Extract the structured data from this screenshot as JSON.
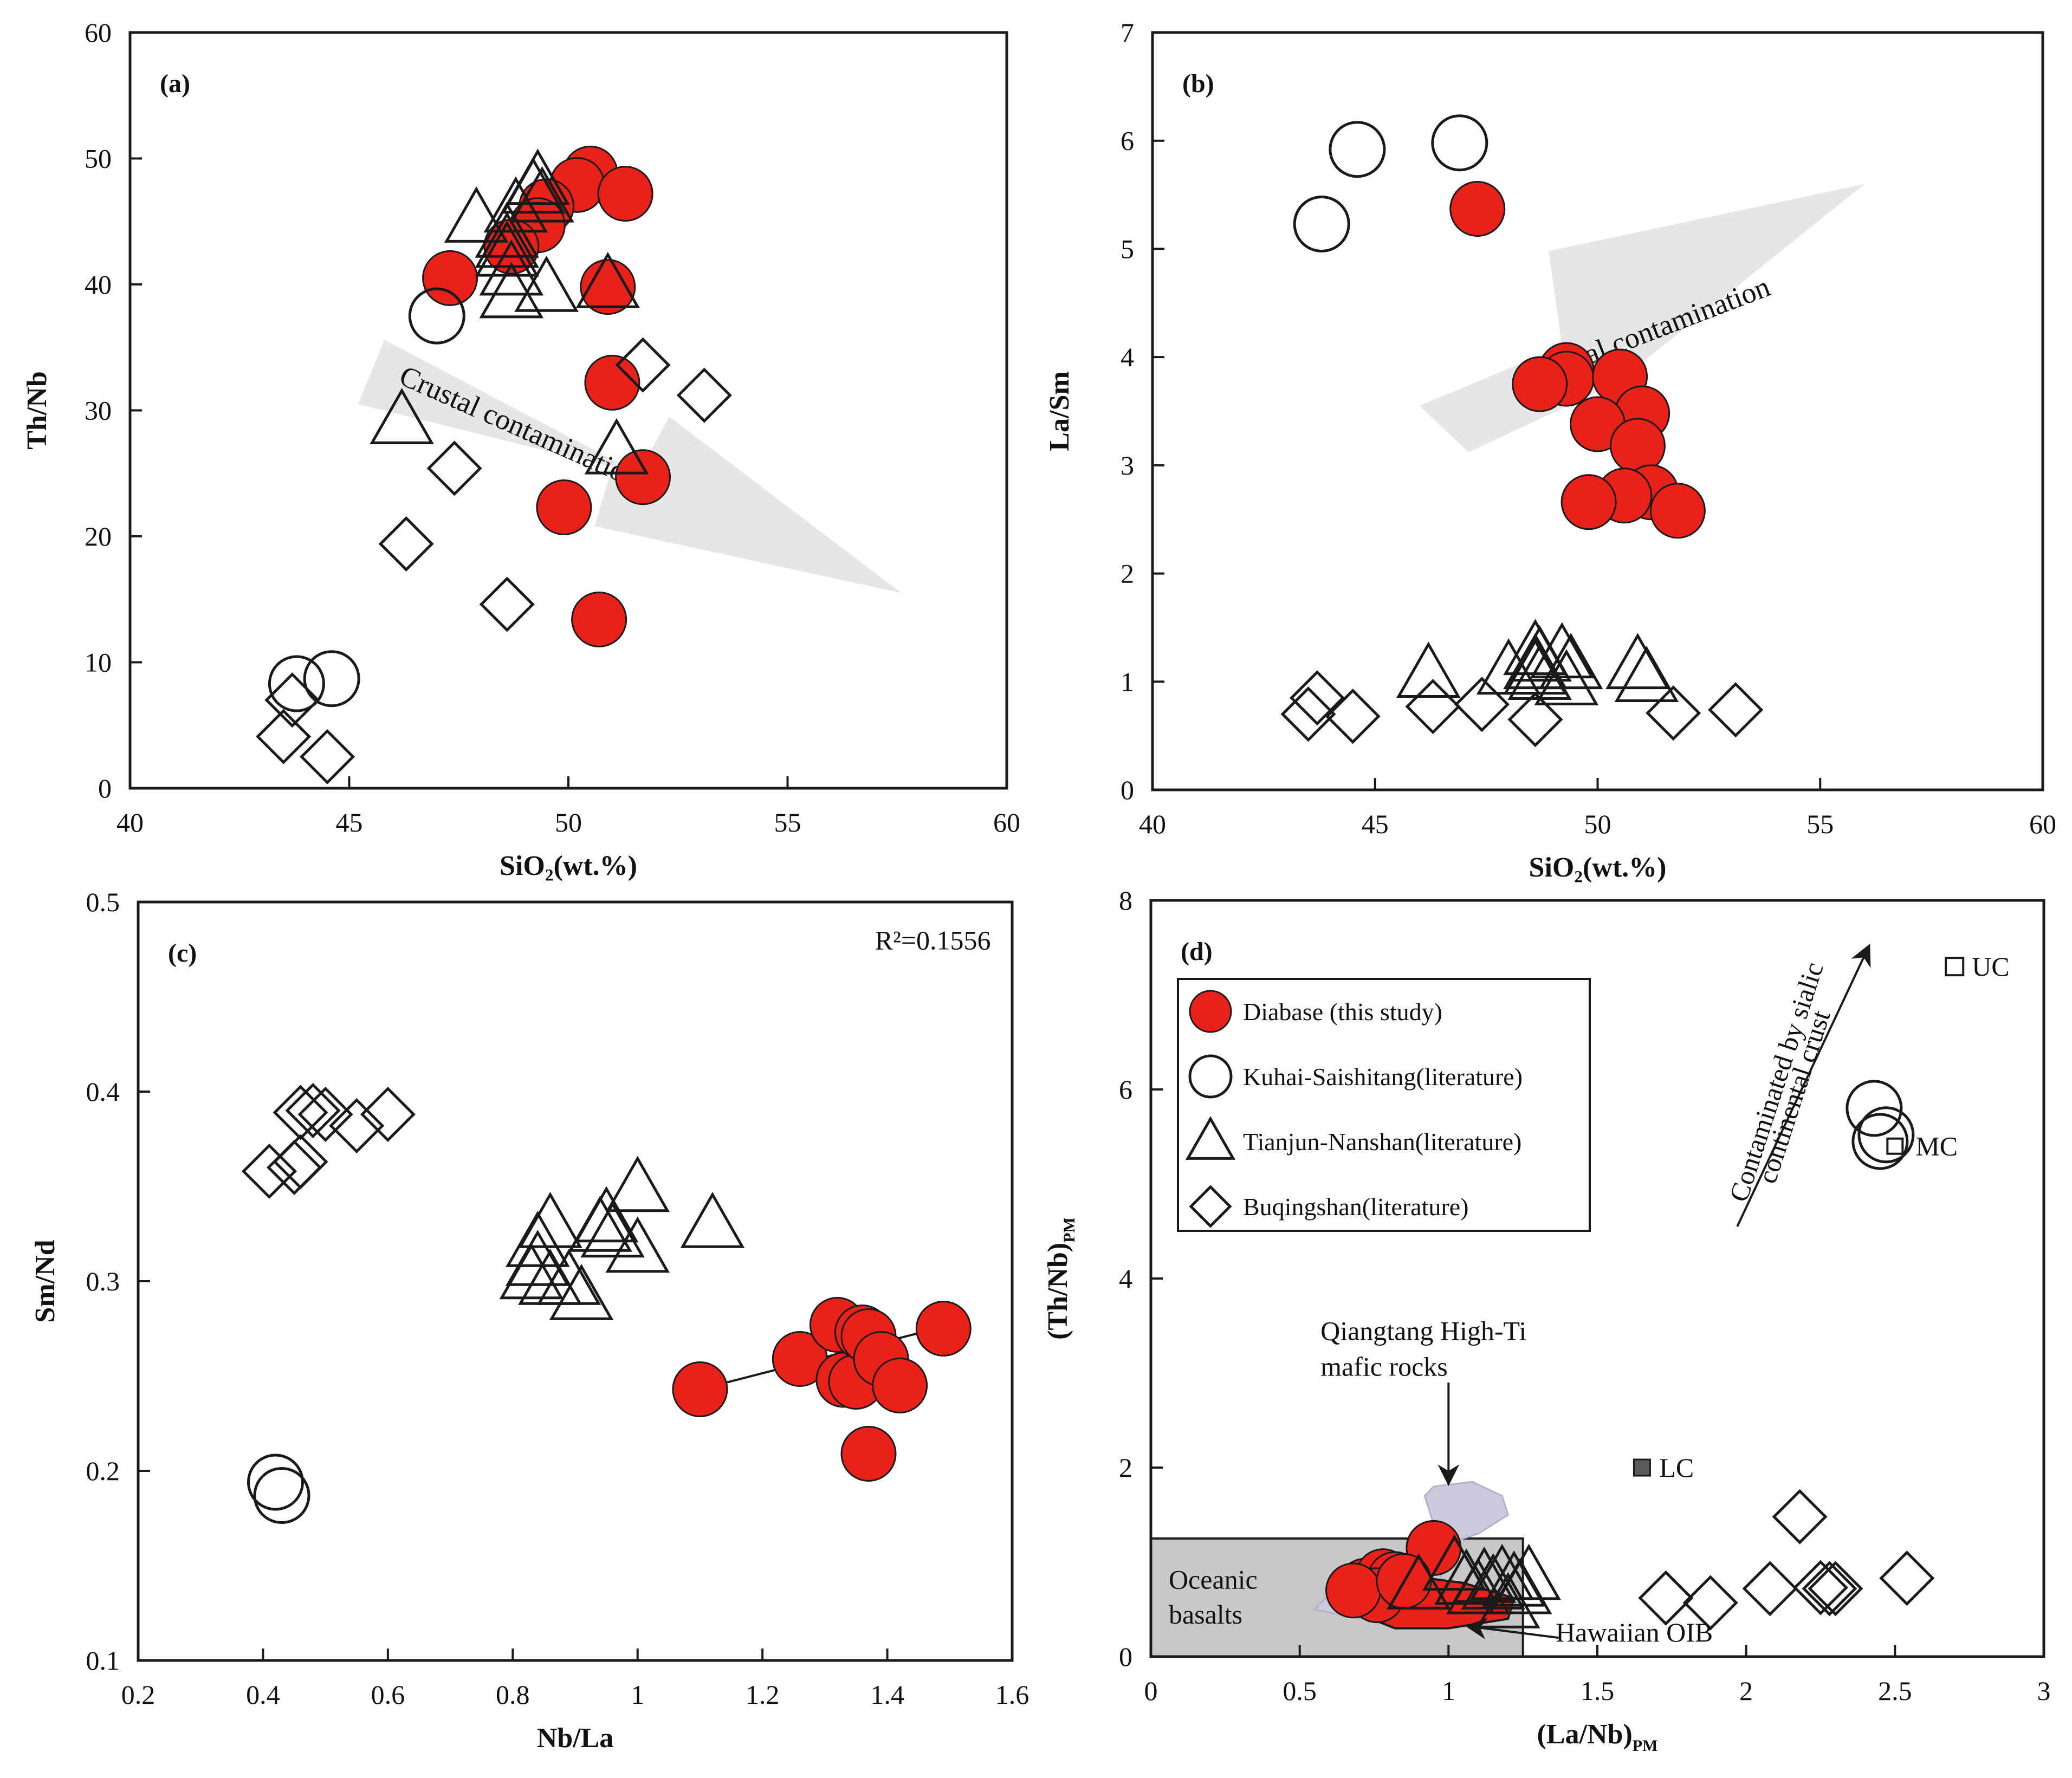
{
  "figure": {
    "colors": {
      "red": "#e8221b",
      "stroke": "#1a1a1a",
      "arrow": "#e6e6e6",
      "box": "#c8c8c8",
      "lc": "#5a5a5a",
      "purple": "#cdc9dc"
    }
  },
  "chart_data": [
    {
      "panel": "a",
      "type": "scatter",
      "label": "(a)",
      "xlabel": "SiO₂(wt.%)",
      "ylabel": "Th/Nb",
      "xlim": [
        40,
        60
      ],
      "ylim": [
        0,
        60
      ],
      "xticks": [
        "40",
        "45",
        "50",
        "55",
        "60"
      ],
      "yticks": [
        "0",
        "10",
        "20",
        "30",
        "40",
        "50",
        "60"
      ],
      "arrow_label": "Crustal contamination",
      "series": [
        {
          "name": "Diabase (this study)",
          "marker": "circle-red",
          "points": [
            [
              50.5,
              48.8
            ],
            [
              50.2,
              47.9
            ],
            [
              51.3,
              47.2
            ],
            [
              49.5,
              46.2
            ],
            [
              49.3,
              44.7
            ],
            [
              48.7,
              43.0
            ],
            [
              47.3,
              40.5
            ],
            [
              50.9,
              39.8
            ],
            [
              51.0,
              32.2
            ],
            [
              51.7,
              24.7
            ],
            [
              49.9,
              22.3
            ],
            [
              50.7,
              13.4
            ]
          ]
        },
        {
          "name": "Kuhai-Saishitang(literature)",
          "marker": "circle-open",
          "points": [
            [
              47.0,
              37.5
            ],
            [
              43.8,
              8.3
            ],
            [
              44.6,
              8.7
            ]
          ]
        },
        {
          "name": "Tianjun-Nanshan(literature)",
          "marker": "triangle",
          "points": [
            [
              49.2,
              47.5
            ],
            [
              49.3,
              48.2
            ],
            [
              49.4,
              46.8
            ],
            [
              48.8,
              46.0
            ],
            [
              47.9,
              45.2
            ],
            [
              48.6,
              44.0
            ],
            [
              48.6,
              43.2
            ],
            [
              48.6,
              42.5
            ],
            [
              48.7,
              41.0
            ],
            [
              48.7,
              39.2
            ],
            [
              49.5,
              39.7
            ],
            [
              50.9,
              40.0
            ],
            [
              51.1,
              26.8
            ],
            [
              46.2,
              29.2
            ]
          ]
        },
        {
          "name": "Buqingshan(literature)",
          "marker": "diamond",
          "points": [
            [
              51.7,
              33.6
            ],
            [
              53.1,
              31.2
            ],
            [
              47.4,
              25.4
            ],
            [
              46.3,
              19.4
            ],
            [
              48.6,
              14.6
            ],
            [
              43.7,
              7.0
            ],
            [
              43.5,
              4.1
            ],
            [
              44.5,
              2.5
            ]
          ]
        }
      ]
    },
    {
      "panel": "b",
      "type": "scatter",
      "label": "(b)",
      "xlabel": "SiO₂(wt.%)",
      "ylabel": "La/Sm",
      "xlim": [
        40,
        60
      ],
      "ylim": [
        0,
        7
      ],
      "xticks": [
        "40",
        "45",
        "50",
        "55",
        "60"
      ],
      "yticks": [
        "0",
        "1",
        "2",
        "3",
        "4",
        "5",
        "6",
        "7"
      ],
      "arrow_label": "Crustal contamination",
      "series": [
        {
          "name": "Diabase (this study)",
          "marker": "circle-red",
          "points": [
            [
              47.3,
              5.37
            ],
            [
              49.3,
              3.88
            ],
            [
              49.3,
              3.8
            ],
            [
              48.7,
              3.75
            ],
            [
              50.5,
              3.82
            ],
            [
              51.0,
              3.48
            ],
            [
              50.0,
              3.38
            ],
            [
              50.9,
              3.18
            ],
            [
              51.2,
              2.75
            ],
            [
              50.6,
              2.72
            ],
            [
              49.8,
              2.66
            ],
            [
              51.8,
              2.58
            ]
          ]
        },
        {
          "name": "Kuhai-Saishitang(literature)",
          "marker": "circle-open",
          "points": [
            [
              44.6,
              5.92
            ],
            [
              46.9,
              5.98
            ],
            [
              43.8,
              5.23
            ]
          ]
        },
        {
          "name": "Tianjun-Nanshan(literature)",
          "marker": "triangle",
          "points": [
            [
              48.6,
              1.28
            ],
            [
              48.7,
              1.22
            ],
            [
              48.6,
              1.15
            ],
            [
              48.6,
              1.1
            ],
            [
              48.7,
              1.05
            ],
            [
              49.2,
              1.25
            ],
            [
              49.4,
              1.15
            ],
            [
              49.3,
              1.0
            ],
            [
              48.0,
              1.1
            ],
            [
              46.2,
              1.07
            ],
            [
              50.9,
              1.15
            ],
            [
              51.1,
              1.03
            ]
          ]
        },
        {
          "name": "Buqingshan(literature)",
          "marker": "diamond",
          "points": [
            [
              43.7,
              0.85
            ],
            [
              43.5,
              0.7
            ],
            [
              44.5,
              0.68
            ],
            [
              46.3,
              0.77
            ],
            [
              47.4,
              0.79
            ],
            [
              48.6,
              0.65
            ],
            [
              51.7,
              0.71
            ],
            [
              53.1,
              0.74
            ]
          ]
        }
      ]
    },
    {
      "panel": "c",
      "type": "scatter",
      "label": "(c)",
      "xlabel": "Nb/La",
      "ylabel": "Sm/Nd",
      "xlim": [
        0.2,
        1.6
      ],
      "ylim": [
        0.1,
        0.5
      ],
      "xticks": [
        "0.2",
        "0.4",
        "0.6",
        "0.8",
        "1",
        "1.2",
        "1.4",
        "1.6"
      ],
      "yticks": [
        "0.1",
        "0.2",
        "0.3",
        "0.4",
        "0.5"
      ],
      "r2_label": "R²=0.1556",
      "trendline": [
        [
          1.1,
          0.243
        ],
        [
          1.49,
          0.276
        ]
      ],
      "series": [
        {
          "name": "Diabase (this study)",
          "marker": "circle-red",
          "points": [
            [
              1.1,
              0.243
            ],
            [
              1.26,
              0.259
            ],
            [
              1.32,
              0.277
            ],
            [
              1.33,
              0.248
            ],
            [
              1.35,
              0.247
            ],
            [
              1.36,
              0.273
            ],
            [
              1.37,
              0.271
            ],
            [
              1.39,
              0.259
            ],
            [
              1.42,
              0.245
            ],
            [
              1.49,
              0.275
            ],
            [
              1.37,
              0.209
            ]
          ]
        },
        {
          "name": "Kuhai-Saishitang(literature)",
          "marker": "circle-open",
          "points": [
            [
              0.42,
              0.194
            ],
            [
              0.43,
              0.187
            ]
          ]
        },
        {
          "name": "Tianjun-Nanshan(literature)",
          "marker": "triangle",
          "points": [
            [
              0.84,
              0.32
            ],
            [
              0.86,
              0.33
            ],
            [
              0.84,
              0.31
            ],
            [
              0.83,
              0.303
            ],
            [
              0.86,
              0.3
            ],
            [
              0.89,
              0.3
            ],
            [
              0.91,
              0.292
            ],
            [
              0.94,
              0.328
            ],
            [
              0.95,
              0.333
            ],
            [
              0.96,
              0.325
            ],
            [
              1.0,
              0.349
            ],
            [
              1.0,
              0.317
            ],
            [
              1.12,
              0.33
            ]
          ]
        },
        {
          "name": "Buqingshan(literature)",
          "marker": "diamond",
          "points": [
            [
              0.41,
              0.358
            ],
            [
              0.45,
              0.36
            ],
            [
              0.46,
              0.363
            ],
            [
              0.46,
              0.389
            ],
            [
              0.48,
              0.39
            ],
            [
              0.5,
              0.388
            ],
            [
              0.55,
              0.382
            ],
            [
              0.6,
              0.388
            ]
          ]
        }
      ]
    },
    {
      "panel": "d",
      "type": "scatter",
      "label": "(d)",
      "xlabel": "(La/Nb)",
      "xlabel_sub": "PM",
      "ylabel": "(Th/Nb)",
      "ylabel_sub": "PM",
      "xlim": [
        0,
        3
      ],
      "ylim": [
        0,
        8
      ],
      "xticks": [
        "0",
        "0.5",
        "1",
        "1.5",
        "2",
        "2.5",
        "3"
      ],
      "yticks": [
        "0",
        "2",
        "4",
        "6",
        "8"
      ],
      "annotations": {
        "oceanic_line1": "Oceanic",
        "oceanic_line2": "basalts",
        "qiangtang_line1": "Qiangtang High-Ti",
        "qiangtang_line2": "mafic rocks",
        "hawaiian": "Hawaiian OIB",
        "contam_line1": "Contaminated by sialic",
        "contam_line2": "continental crust",
        "uc": "UC",
        "mc": "MC",
        "lc": "LC"
      },
      "reference_points": {
        "UC": [
          2.7,
          7.3
        ],
        "MC": [
          2.5,
          5.4
        ],
        "LC": [
          1.65,
          2.0
        ]
      },
      "legend": [
        {
          "marker": "circle-red",
          "label": "Diabase (this study)"
        },
        {
          "marker": "circle-open",
          "label": "Kuhai-Saishitang(literature)"
        },
        {
          "marker": "triangle",
          "label": "Tianjun-Nanshan(literature)"
        },
        {
          "marker": "diamond",
          "label": "Buqingshan(literature)"
        }
      ],
      "series": [
        {
          "name": "Diabase (this study)",
          "marker": "circle-red",
          "points": [
            [
              0.95,
              1.15
            ],
            [
              0.72,
              0.75
            ],
            [
              0.78,
              0.85
            ],
            [
              0.82,
              0.82
            ],
            [
              0.76,
              0.65
            ],
            [
              0.68,
              0.7
            ],
            [
              0.85,
              0.8
            ]
          ]
        },
        {
          "name": "Kuhai-Saishitang(literature)",
          "marker": "circle-open",
          "points": [
            [
              2.43,
              5.8
            ],
            [
              2.45,
              5.45
            ],
            [
              2.47,
              5.52
            ]
          ]
        },
        {
          "name": "Tianjun-Nanshan(literature)",
          "marker": "triangle",
          "points": [
            [
              0.9,
              0.75
            ],
            [
              1.02,
              0.95
            ],
            [
              1.06,
              0.8
            ],
            [
              1.1,
              0.7
            ],
            [
              1.12,
              0.82
            ],
            [
              1.15,
              0.75
            ],
            [
              1.18,
              0.85
            ],
            [
              1.22,
              0.78
            ],
            [
              1.24,
              0.7
            ],
            [
              1.27,
              0.85
            ],
            [
              1.2,
              0.55
            ]
          ]
        },
        {
          "name": "Buqingshan(literature)",
          "marker": "diamond",
          "points": [
            [
              1.73,
              0.62
            ],
            [
              1.88,
              0.57
            ],
            [
              2.08,
              0.72
            ],
            [
              2.18,
              1.48
            ],
            [
              2.25,
              0.73
            ],
            [
              2.28,
              0.72
            ],
            [
              2.3,
              0.72
            ],
            [
              2.54,
              0.83
            ]
          ]
        }
      ]
    }
  ]
}
